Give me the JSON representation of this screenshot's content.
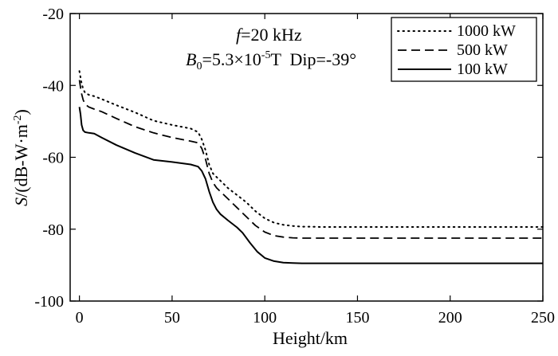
{
  "chart_data": {
    "type": "line",
    "title": "",
    "xlabel": "Height/km",
    "ylabel": "S/(dB-W·m-2)",
    "ylabel_parts": {
      "var": "S",
      "unit": "/(dB-W·m",
      "sup": "-2",
      "close": ")"
    },
    "xlim": [
      -5,
      250
    ],
    "ylim": [
      -100,
      -20
    ],
    "xticks": [
      0,
      50,
      100,
      150,
      200,
      250
    ],
    "yticks": [
      -100,
      -80,
      -60,
      -40,
      -20
    ],
    "xtick_labels": [
      "0",
      "50",
      "100",
      "150",
      "200",
      "250"
    ],
    "ytick_labels": [
      "-100",
      "-80",
      "-60",
      "-40",
      "-20"
    ],
    "grid": false,
    "legend_position": "top-right",
    "annotations": {
      "freq": {
        "var": "f",
        "text": "=20 kHz"
      },
      "field": {
        "var": "B",
        "sub": "0",
        "text1": "=5.3×10",
        "sup": "-5",
        "text2": "T  Dip=-39°"
      }
    },
    "series": [
      {
        "name": "1000 kW",
        "style": "dotted",
        "x": [
          0,
          1,
          2,
          3,
          5,
          8,
          12,
          20,
          30,
          40,
          50,
          60,
          64,
          66,
          68,
          70,
          72,
          74,
          76,
          80,
          85,
          90,
          95,
          100,
          105,
          110,
          115,
          120,
          125,
          130,
          150,
          200,
          250
        ],
        "y": [
          -36,
          -39,
          -41,
          -42,
          -42.6,
          -43,
          -43.8,
          -45.5,
          -47.5,
          -49.8,
          -51,
          -52,
          -53,
          -55,
          -58,
          -62,
          -64.5,
          -65.5,
          -66.5,
          -68.5,
          -70.5,
          -72.5,
          -75,
          -77,
          -78.2,
          -78.8,
          -79.1,
          -79.3,
          -79.3,
          -79.4,
          -79.4,
          -79.4,
          -79.4
        ]
      },
      {
        "name": "500 kW",
        "style": "dashed",
        "x": [
          0,
          1,
          2,
          3,
          5,
          8,
          12,
          20,
          30,
          40,
          50,
          60,
          64,
          66,
          68,
          70,
          72,
          74,
          76,
          80,
          85,
          90,
          95,
          100,
          105,
          110,
          115,
          120,
          125,
          130,
          150,
          200,
          250
        ],
        "y": [
          -38.5,
          -42,
          -44,
          -45.2,
          -46,
          -46.6,
          -47.3,
          -49.2,
          -51.5,
          -53.2,
          -54.5,
          -55.5,
          -56,
          -57.5,
          -60.5,
          -64.5,
          -67,
          -68.5,
          -69.5,
          -71.5,
          -74,
          -76.5,
          -79,
          -80.8,
          -81.8,
          -82.2,
          -82.4,
          -82.5,
          -82.5,
          -82.5,
          -82.5,
          -82.5,
          -82.5
        ]
      },
      {
        "name": "100 kW",
        "style": "solid",
        "x": [
          0,
          0.6,
          1.2,
          2,
          3,
          5,
          8,
          12,
          20,
          30,
          40,
          50,
          60,
          64,
          66,
          68,
          70,
          72,
          74,
          76,
          80,
          85,
          88,
          92,
          96,
          100,
          105,
          110,
          115,
          120,
          125,
          130,
          150,
          200,
          250
        ],
        "y": [
          -46,
          -48,
          -51,
          -52.5,
          -53,
          -53.2,
          -53.4,
          -54.5,
          -56.6,
          -58.8,
          -60.7,
          -61.3,
          -62,
          -62.6,
          -63.8,
          -66,
          -69.5,
          -72.5,
          -74.5,
          -75.8,
          -77.5,
          -79.5,
          -81,
          -83.8,
          -86.3,
          -88,
          -88.9,
          -89.3,
          -89.4,
          -89.5,
          -89.5,
          -89.5,
          -89.5,
          -89.5,
          -89.5
        ]
      }
    ]
  }
}
